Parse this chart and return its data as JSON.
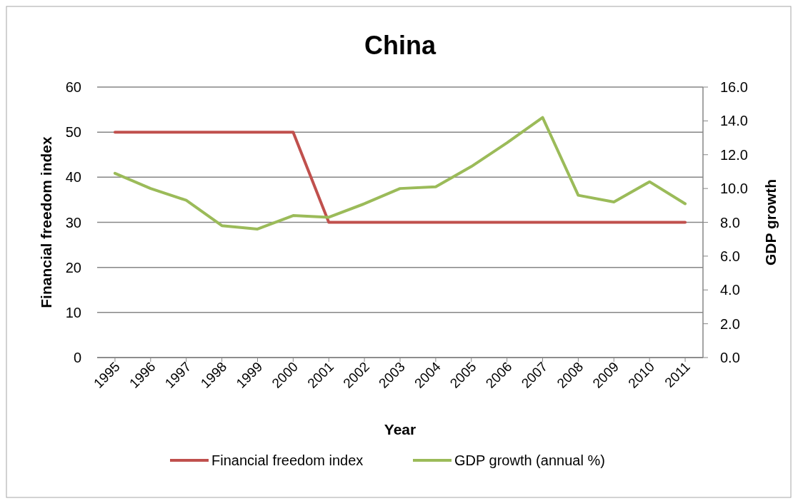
{
  "chart_data": {
    "type": "line",
    "title": "China",
    "xlabel": "Year",
    "ylabel": "Financial freedom index",
    "y2label": "GDP growth",
    "categories": [
      "1995",
      "1996",
      "1997",
      "1998",
      "1999",
      "2000",
      "2001",
      "2002",
      "2003",
      "2004",
      "2005",
      "2006",
      "2007",
      "2008",
      "2009",
      "2010",
      "2011"
    ],
    "series": [
      {
        "name": "Financial freedom index",
        "color": "#c0504d",
        "values": [
          50,
          50,
          50,
          50,
          50,
          50,
          30,
          30,
          30,
          30,
          30,
          30,
          30,
          30,
          30,
          30,
          30
        ]
      },
      {
        "name": "GDP growth (annual %)",
        "color": "#9bbb59",
        "axis": "y2",
        "values": [
          10.9,
          10.0,
          9.3,
          7.8,
          7.6,
          8.4,
          8.3,
          9.1,
          10.0,
          10.1,
          11.3,
          12.7,
          14.2,
          9.6,
          9.2,
          10.4,
          9.1
        ]
      }
    ],
    "ylim": [
      0,
      60
    ],
    "yticks": [
      0,
      10,
      20,
      30,
      40,
      50,
      60
    ],
    "y2lim": [
      0,
      16
    ],
    "y2ticks": [
      {
        "value": 0,
        "label": "0.0"
      },
      {
        "value": 2,
        "label": "2.0"
      },
      {
        "value": 4,
        "label": "4.0"
      },
      {
        "value": 6,
        "label": "6.0"
      },
      {
        "value": 8,
        "label": "8.0"
      },
      {
        "value": 10,
        "label": "10.0"
      },
      {
        "value": 12,
        "label": "12.0"
      },
      {
        "value": 14,
        "label": "14.0"
      },
      {
        "value": 16,
        "label": "16.0"
      }
    ],
    "grid": "y",
    "legend": "bottom",
    "marker": "none",
    "line_style": "solid"
  }
}
